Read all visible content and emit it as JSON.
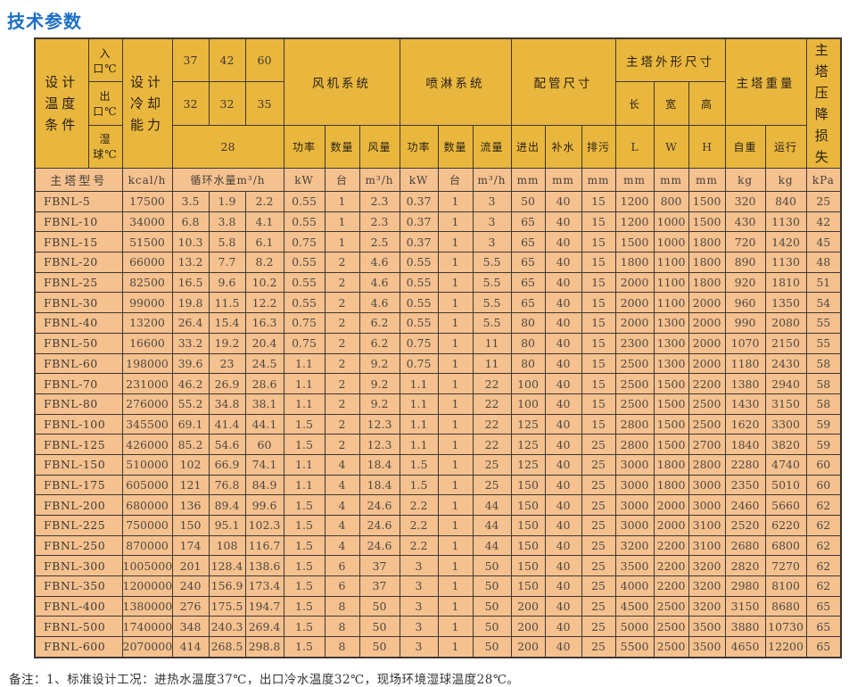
{
  "page": {
    "title": "技术参数",
    "note": "备注：1、标准设计工况：进热水温度37℃，出口冷水温度32℃，现场环境湿球温度28℃。"
  },
  "colors": {
    "title_blue": "#1B6EC6",
    "header_yellow": "#EAB73E",
    "row_salmon": "#F5C18F",
    "border_dark": "#3E3831"
  },
  "table": {
    "header": {
      "design_condition": "设计\n温度\n条件",
      "inlet": "入口℃",
      "outlet": "出口℃",
      "wet_bulb": "湿球℃",
      "cooling_capacity": "设计\n冷却\n能力",
      "inlet_temps": [
        "37",
        "42",
        "60"
      ],
      "outlet_temps": [
        "32",
        "32",
        "35"
      ],
      "wet_bulb_temp": "28",
      "fan_system": "风机系统",
      "spray_system": "喷淋系统",
      "piping": "配管尺寸",
      "dimensions": "主塔外形尺寸",
      "dim_length": "长",
      "dim_width": "宽",
      "dim_height": "高",
      "weight": "主塔重量",
      "pressure_drop": "主塔\n压降\n损失",
      "power": "功率",
      "qty": "数量",
      "airflow": "风量",
      "flow": "流量",
      "inlet_outlet": "进出",
      "makeup_water": "补水",
      "drain": "排污",
      "L": "L",
      "W": "W",
      "H": "H",
      "net_weight": "自重",
      "operating": "运行"
    },
    "units": {
      "model": "主塔型号",
      "kcal": "kcal/h",
      "circulation": "循环水量m³/h",
      "kw": "kW",
      "tai": "台",
      "m3h": "m³/h",
      "mm": "mm",
      "kg": "kg",
      "kpa": "kPa"
    },
    "rows": [
      {
        "model": "FBNL-5",
        "values": [
          "17500",
          "3.5",
          "1.9",
          "2.2",
          "0.55",
          "1",
          "2.3",
          "0.37",
          "1",
          "3",
          "50",
          "40",
          "15",
          "1200",
          "800",
          "1500",
          "320",
          "840",
          "25"
        ]
      },
      {
        "model": "FBNL-10",
        "values": [
          "34000",
          "6.8",
          "3.8",
          "4.1",
          "0.55",
          "1",
          "2.3",
          "0.37",
          "1",
          "3",
          "65",
          "40",
          "15",
          "1200",
          "1000",
          "1500",
          "430",
          "1130",
          "42"
        ]
      },
      {
        "model": "FBNL-15",
        "values": [
          "51500",
          "10.3",
          "5.8",
          "6.1",
          "0.75",
          "1",
          "2.5",
          "0.37",
          "1",
          "3",
          "65",
          "40",
          "15",
          "1500",
          "1000",
          "1800",
          "720",
          "1420",
          "45"
        ]
      },
      {
        "model": "FBNL-20",
        "values": [
          "66000",
          "13.2",
          "7.7",
          "8.2",
          "0.55",
          "2",
          "4.6",
          "0.55",
          "1",
          "5.5",
          "65",
          "40",
          "15",
          "1800",
          "1100",
          "1800",
          "890",
          "1130",
          "48"
        ]
      },
      {
        "model": "FBNL-25",
        "values": [
          "82500",
          "16.5",
          "9.6",
          "10.2",
          "0.55",
          "2",
          "4.6",
          "0.55",
          "1",
          "5.5",
          "65",
          "40",
          "15",
          "2000",
          "1100",
          "1800",
          "920",
          "1810",
          "51"
        ]
      },
      {
        "model": "FBNL-30",
        "values": [
          "99000",
          "19.8",
          "11.5",
          "12.2",
          "0.55",
          "2",
          "4.6",
          "0.55",
          "1",
          "5.5",
          "65",
          "40",
          "15",
          "2000",
          "1100",
          "2000",
          "960",
          "1350",
          "54"
        ]
      },
      {
        "model": "FBNL-40",
        "values": [
          "13200",
          "26.4",
          "15.4",
          "16.3",
          "0.75",
          "2",
          "6.2",
          "0.55",
          "1",
          "5.5",
          "80",
          "40",
          "15",
          "2000",
          "1300",
          "2000",
          "990",
          "2080",
          "55"
        ]
      },
      {
        "model": "FBNL-50",
        "values": [
          "16600",
          "33.2",
          "19.2",
          "20.4",
          "0.75",
          "2",
          "6.2",
          "0.75",
          "1",
          "11",
          "80",
          "40",
          "15",
          "2300",
          "1300",
          "2000",
          "1070",
          "2150",
          "55"
        ]
      },
      {
        "model": "FBNL-60",
        "values": [
          "198000",
          "39.6",
          "23",
          "24.5",
          "1.1",
          "2",
          "9.2",
          "0.75",
          "1",
          "11",
          "80",
          "40",
          "15",
          "2500",
          "1300",
          "2000",
          "1180",
          "2430",
          "58"
        ]
      },
      {
        "model": "FBNL-70",
        "values": [
          "231000",
          "46.2",
          "26.9",
          "28.6",
          "1.1",
          "2",
          "9.2",
          "1.1",
          "1",
          "22",
          "100",
          "40",
          "15",
          "2500",
          "1500",
          "2200",
          "1380",
          "2940",
          "58"
        ]
      },
      {
        "model": "FBNL-80",
        "values": [
          "276000",
          "55.2",
          "34.8",
          "38.1",
          "1.1",
          "2",
          "9.2",
          "1.1",
          "1",
          "22",
          "100",
          "40",
          "15",
          "2500",
          "1500",
          "2500",
          "1430",
          "3150",
          "58"
        ]
      },
      {
        "model": "FBNL-100",
        "values": [
          "345500",
          "69.1",
          "41.4",
          "44.1",
          "1.5",
          "2",
          "12.3",
          "1.1",
          "1",
          "22",
          "125",
          "40",
          "15",
          "2800",
          "1500",
          "2500",
          "1620",
          "3300",
          "59"
        ]
      },
      {
        "model": "FBNL-125",
        "values": [
          "426000",
          "85.2",
          "54.6",
          "60",
          "1.5",
          "2",
          "12.3",
          "1.1",
          "1",
          "22",
          "125",
          "40",
          "25",
          "2800",
          "1500",
          "2700",
          "1840",
          "3820",
          "59"
        ]
      },
      {
        "model": "FBNL-150",
        "values": [
          "510000",
          "102",
          "66.9",
          "74.1",
          "1.1",
          "4",
          "18.4",
          "1.5",
          "1",
          "25",
          "125",
          "40",
          "25",
          "3000",
          "1800",
          "2800",
          "2280",
          "4740",
          "60"
        ]
      },
      {
        "model": "FBNL-175",
        "values": [
          "605000",
          "121",
          "76.8",
          "84.9",
          "1.1",
          "4",
          "18.4",
          "1.5",
          "1",
          "25",
          "150",
          "40",
          "25",
          "3000",
          "1800",
          "3000",
          "2350",
          "5010",
          "60"
        ]
      },
      {
        "model": "FBNL-200",
        "values": [
          "680000",
          "136",
          "89.4",
          "99.6",
          "1.5",
          "4",
          "24.6",
          "2.2",
          "1",
          "44",
          "150",
          "40",
          "25",
          "3000",
          "2000",
          "3000",
          "2460",
          "5660",
          "62"
        ]
      },
      {
        "model": "FBNL-225",
        "values": [
          "750000",
          "150",
          "95.1",
          "102.3",
          "1.5",
          "4",
          "24.6",
          "2.2",
          "1",
          "44",
          "150",
          "40",
          "25",
          "3000",
          "2000",
          "3100",
          "2520",
          "6220",
          "62"
        ]
      },
      {
        "model": "FBNL-250",
        "values": [
          "870000",
          "174",
          "108",
          "116.7",
          "1.5",
          "4",
          "24.6",
          "2.2",
          "1",
          "44",
          "150",
          "40",
          "25",
          "3200",
          "2200",
          "3100",
          "2680",
          "6800",
          "62"
        ]
      },
      {
        "model": "FBNL-300",
        "values": [
          "1005000",
          "201",
          "128.4",
          "138.6",
          "1.5",
          "6",
          "37",
          "3",
          "1",
          "50",
          "150",
          "40",
          "25",
          "3500",
          "2200",
          "3200",
          "2820",
          "7270",
          "62"
        ]
      },
      {
        "model": "FBNL-350",
        "values": [
          "1200000",
          "240",
          "156.9",
          "173.4",
          "1.5",
          "6",
          "37",
          "3",
          "1",
          "50",
          "150",
          "40",
          "25",
          "4000",
          "2200",
          "3200",
          "2980",
          "8100",
          "62"
        ]
      },
      {
        "model": "FBNL-400",
        "values": [
          "1380000",
          "276",
          "175.5",
          "194.7",
          "1.5",
          "8",
          "50",
          "3",
          "1",
          "50",
          "200",
          "40",
          "25",
          "4500",
          "2500",
          "3200",
          "3150",
          "8680",
          "65"
        ]
      },
      {
        "model": "FBNL-500",
        "values": [
          "1740000",
          "348",
          "240.3",
          "269.4",
          "1.5",
          "8",
          "50",
          "3",
          "1",
          "50",
          "200",
          "40",
          "25",
          "5000",
          "2500",
          "3500",
          "3880",
          "10730",
          "65"
        ]
      },
      {
        "model": "FBNL-600",
        "values": [
          "2070000",
          "414",
          "268.5",
          "298.8",
          "1.5",
          "8",
          "50",
          "3",
          "1",
          "50",
          "200",
          "40",
          "25",
          "5500",
          "2500",
          "3500",
          "4650",
          "12200",
          "65"
        ]
      }
    ]
  }
}
